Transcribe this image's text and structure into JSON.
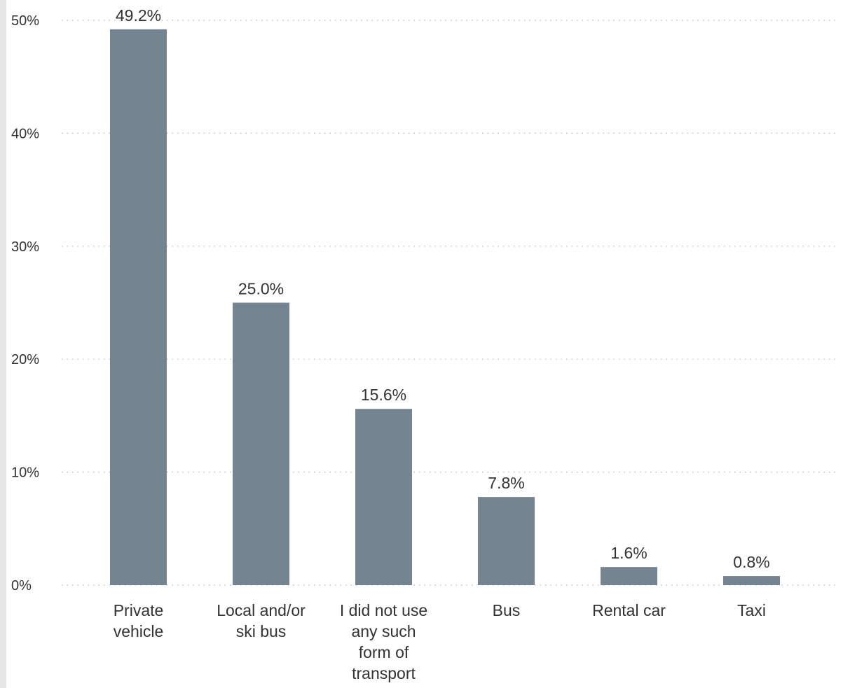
{
  "chart_data": {
    "type": "bar",
    "categories": [
      "Private vehicle",
      "Local and/or ski bus",
      "I did not use any such form of transport",
      "Bus",
      "Rental car",
      "Taxi"
    ],
    "category_lines": [
      [
        "Private",
        "vehicle"
      ],
      [
        "Local and/or",
        "ski bus"
      ],
      [
        "I did not use",
        "any such",
        "form of",
        "transport"
      ],
      [
        "Bus"
      ],
      [
        "Rental car"
      ],
      [
        "Taxi"
      ]
    ],
    "values": [
      49.2,
      25.0,
      15.6,
      7.8,
      1.6,
      0.8
    ],
    "value_labels": [
      "49.2%",
      "25.0%",
      "15.6%",
      "7.8%",
      "1.6%",
      "0.8%"
    ],
    "yticks": [
      0,
      10,
      20,
      30,
      40,
      50
    ],
    "ytick_labels": [
      "0%",
      "10%",
      "20%",
      "30%",
      "40%",
      "50%"
    ],
    "ylim": [
      0,
      50
    ],
    "grid": true,
    "legend": "none",
    "bar_color": "#748591",
    "title": "",
    "xlabel": "",
    "ylabel": ""
  }
}
